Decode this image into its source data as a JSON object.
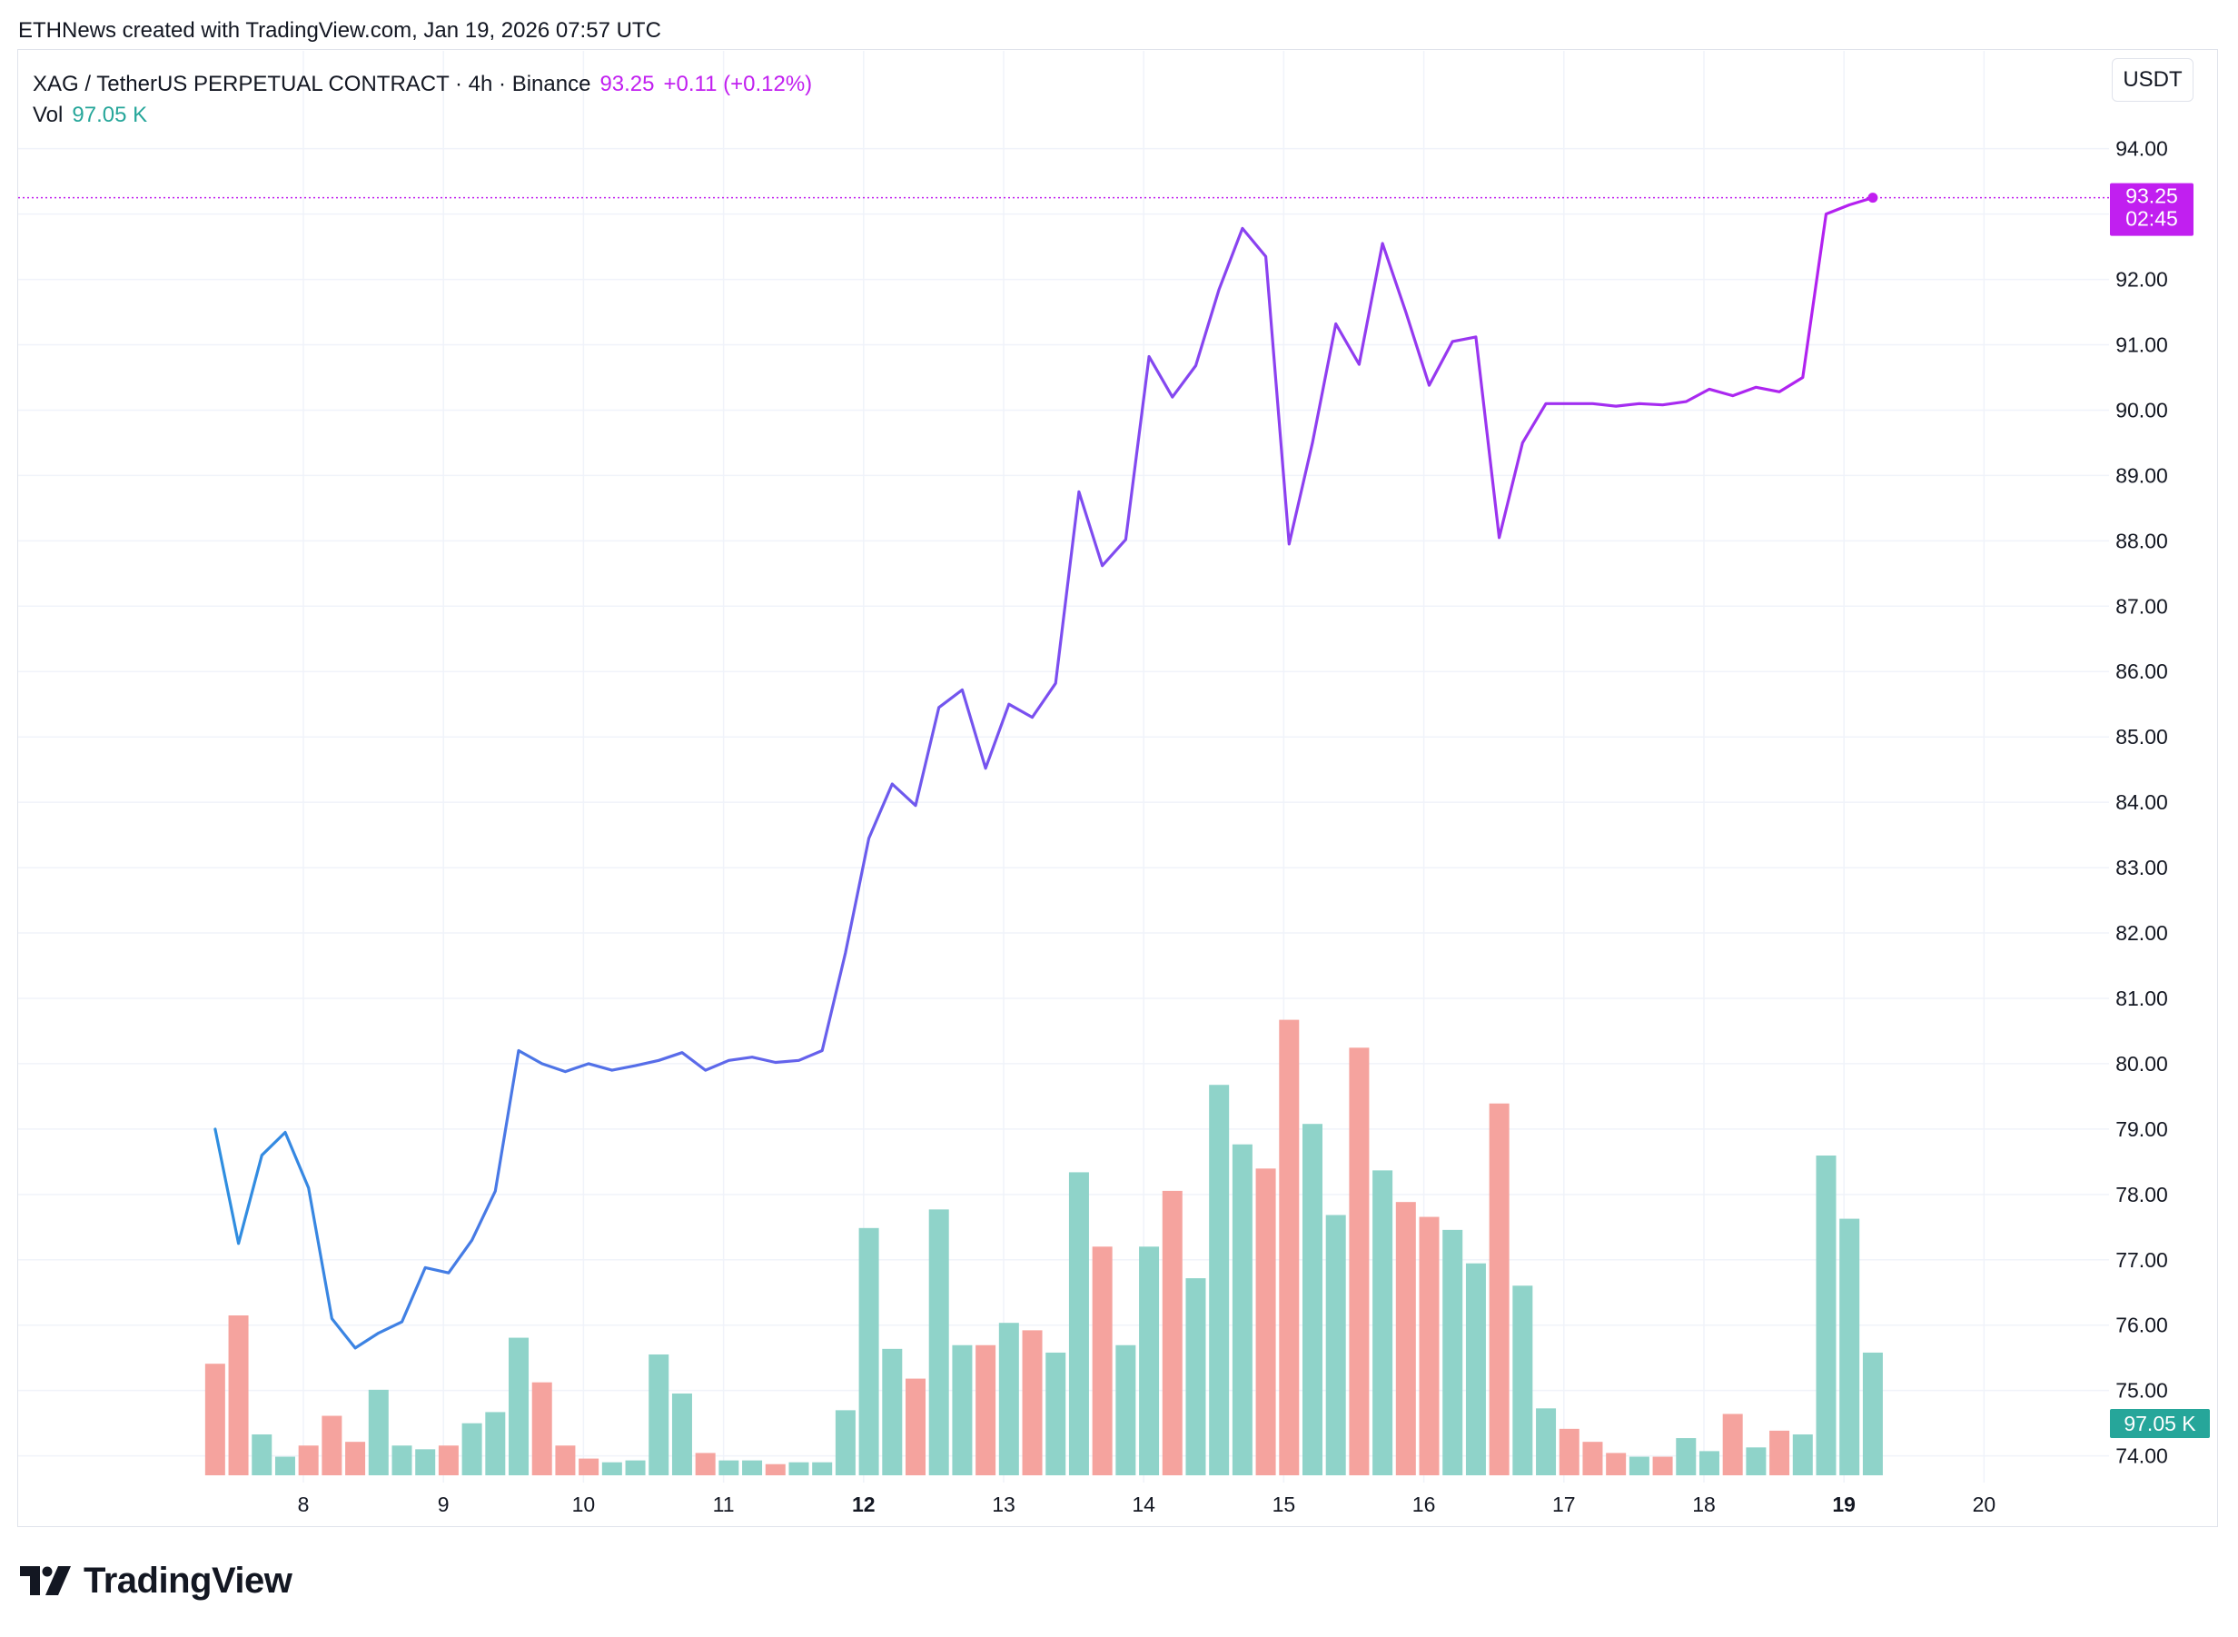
{
  "header": {
    "attribution": "ETHNews created with TradingView.com, Jan 19, 2026 07:57 UTC"
  },
  "legend": {
    "symbol": "XAG / TetherUS PERPETUAL CONTRACT · 4h · Binance",
    "price": "93.25",
    "change": "+0.11 (+0.12%)",
    "vol_label": "Vol",
    "vol_value": "97.05 K"
  },
  "currency_button": "USDT",
  "price_tag": {
    "price": "93.25",
    "countdown": "02:45"
  },
  "volume_tag": "97.05 K",
  "logo_text": "TradingView",
  "colors": {
    "line_start": "#2e8fe0",
    "line_mid": "#7b4ff0",
    "line_end": "#b51ff0",
    "price_tag": "#c11ff0",
    "volume_up": "#8fd3c9",
    "volume_down": "#f5a39e",
    "volume_tag": "#26a69a",
    "grid": "#f0f3fa",
    "text": "#131722"
  },
  "chart_data": {
    "type": "line",
    "title": "XAG / TetherUS PERPETUAL CONTRACT · 4h · Binance",
    "x_axis": {
      "labels": [
        "8",
        "9",
        "10",
        "11",
        "12",
        "13",
        "14",
        "15",
        "16",
        "17",
        "18",
        "19",
        "20"
      ],
      "bold_labels": [
        "12",
        "19"
      ],
      "range_days": [
        6.7,
        20.7
      ]
    },
    "y_axis": {
      "position": "right",
      "range": [
        73.8,
        94.6
      ],
      "ticks": [
        "74.00",
        "75.00",
        "76.00",
        "77.00",
        "78.00",
        "79.00",
        "80.00",
        "81.00",
        "82.00",
        "83.00",
        "84.00",
        "85.00",
        "86.00",
        "87.00",
        "88.00",
        "89.00",
        "90.00",
        "91.00",
        "92.00",
        "93.00",
        "94.00"
      ]
    },
    "grid": true,
    "interval_days": 0.1667,
    "first_bar_day": 7.37,
    "price_series": {
      "name": "XAG / TetherUS PERPETUAL CONTRACT",
      "values": [
        79.0,
        77.25,
        78.6,
        78.95,
        78.1,
        76.1,
        75.65,
        75.88,
        76.05,
        76.88,
        76.8,
        77.3,
        78.05,
        80.2,
        80.0,
        79.88,
        80.0,
        79.9,
        79.97,
        80.05,
        80.17,
        79.9,
        80.05,
        80.1,
        80.02,
        80.05,
        80.2,
        81.7,
        83.45,
        84.28,
        83.95,
        85.45,
        85.72,
        84.52,
        85.5,
        85.3,
        85.82,
        88.75,
        87.62,
        88.02,
        90.82,
        90.2,
        90.68,
        91.85,
        92.78,
        92.35,
        87.95,
        89.5,
        91.32,
        90.7,
        92.55,
        91.5,
        90.38,
        91.05,
        91.12,
        88.05,
        89.5,
        90.1,
        90.1,
        90.1,
        90.06,
        90.1,
        90.08,
        90.13,
        90.32,
        90.22,
        90.35,
        90.28,
        90.5,
        93.0,
        93.14,
        93.25
      ]
    },
    "volume_series": {
      "name": "Vol",
      "max_scale": 21.5,
      "values": [
        6.0,
        8.6,
        2.2,
        1.0,
        1.6,
        3.2,
        1.8,
        4.6,
        1.6,
        1.4,
        1.6,
        2.8,
        3.4,
        7.4,
        5.0,
        1.6,
        0.9,
        0.7,
        0.8,
        6.5,
        4.4,
        1.2,
        0.8,
        0.8,
        0.6,
        0.7,
        0.7,
        3.5,
        13.3,
        6.8,
        5.2,
        14.3,
        7.0,
        7.0,
        8.2,
        7.8,
        6.6,
        16.3,
        12.3,
        7.0,
        12.3,
        15.3,
        10.6,
        21.0,
        17.8,
        16.5,
        24.5,
        18.9,
        14.0,
        23.0,
        16.4,
        14.7,
        13.9,
        13.2,
        11.4,
        20.0,
        10.2,
        3.6,
        2.5,
        1.8,
        1.2,
        1.0,
        1.0,
        2.0,
        1.3,
        3.3,
        1.5,
        2.4,
        2.2,
        17.2,
        13.8,
        6.6
      ],
      "directions": [
        "down",
        "down",
        "up",
        "up",
        "down",
        "down",
        "down",
        "up",
        "up",
        "up",
        "down",
        "up",
        "up",
        "up",
        "down",
        "down",
        "down",
        "up",
        "up",
        "up",
        "up",
        "down",
        "up",
        "up",
        "down",
        "up",
        "up",
        "up",
        "up",
        "up",
        "down",
        "up",
        "up",
        "down",
        "up",
        "down",
        "up",
        "up",
        "down",
        "up",
        "up",
        "down",
        "up",
        "up",
        "up",
        "down",
        "down",
        "up",
        "up",
        "down",
        "up",
        "down",
        "down",
        "up",
        "up",
        "down",
        "up",
        "up",
        "down",
        "down",
        "down",
        "up",
        "down",
        "up",
        "up",
        "down",
        "up",
        "down",
        "up",
        "up",
        "up",
        "up"
      ]
    },
    "last_price": 93.25
  }
}
